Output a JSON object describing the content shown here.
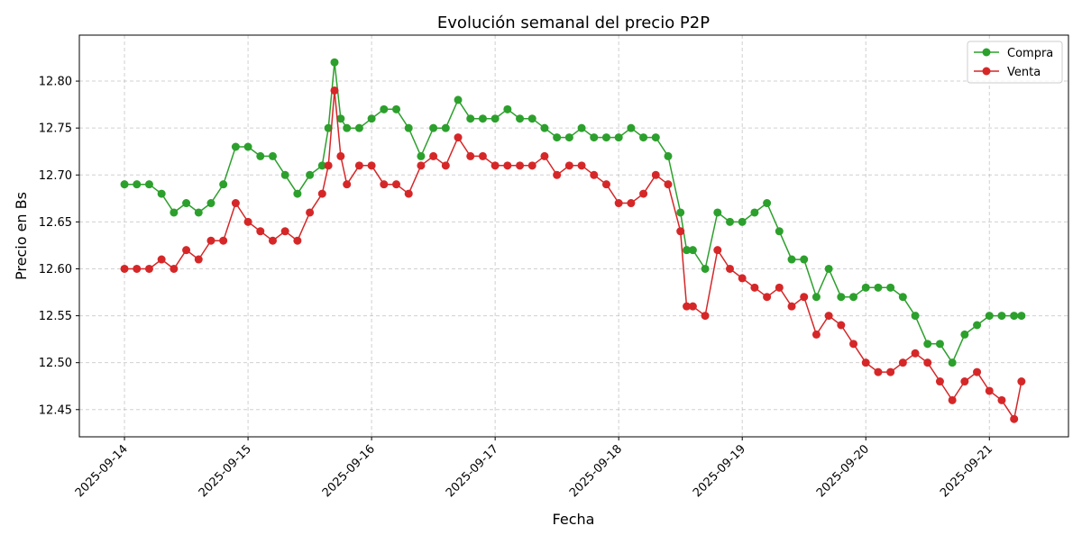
{
  "chart_data": {
    "type": "line",
    "title": "Evolución semanal del precio P2P",
    "xlabel": "Fecha",
    "ylabel": "Precio en Bs",
    "xlim": [
      "2025-09-13T15:14",
      "2025-09-21T15:22"
    ],
    "ylim": [
      12.421,
      12.849
    ],
    "x_ticks": [
      "2025-09-14",
      "2025-09-15",
      "2025-09-16",
      "2025-09-17",
      "2025-09-18",
      "2025-09-19",
      "2025-09-20",
      "2025-09-21"
    ],
    "y_ticks": [
      "12.45",
      "12.50",
      "12.55",
      "12.60",
      "12.65",
      "12.70",
      "12.75",
      "12.80"
    ],
    "grid": true,
    "legend_position": "top-right",
    "x": [
      "2025-09-14T00:00",
      "2025-09-14T02:24",
      "2025-09-14T04:48",
      "2025-09-14T07:12",
      "2025-09-14T09:36",
      "2025-09-14T12:00",
      "2025-09-14T14:24",
      "2025-09-14T16:48",
      "2025-09-14T19:12",
      "2025-09-14T21:36",
      "2025-09-15T00:00",
      "2025-09-15T02:24",
      "2025-09-15T04:48",
      "2025-09-15T07:12",
      "2025-09-15T09:36",
      "2025-09-15T12:00",
      "2025-09-15T14:24",
      "2025-09-15T15:36",
      "2025-09-15T16:48",
      "2025-09-15T18:00",
      "2025-09-15T19:12",
      "2025-09-15T21:36",
      "2025-09-16T00:00",
      "2025-09-16T02:24",
      "2025-09-16T04:48",
      "2025-09-16T07:12",
      "2025-09-16T09:36",
      "2025-09-16T12:00",
      "2025-09-16T14:24",
      "2025-09-16T16:48",
      "2025-09-16T19:12",
      "2025-09-16T21:36",
      "2025-09-17T00:00",
      "2025-09-17T02:24",
      "2025-09-17T04:48",
      "2025-09-17T07:12",
      "2025-09-17T09:36",
      "2025-09-17T12:00",
      "2025-09-17T14:24",
      "2025-09-17T16:48",
      "2025-09-17T19:12",
      "2025-09-17T21:36",
      "2025-09-18T00:00",
      "2025-09-18T02:24",
      "2025-09-18T04:48",
      "2025-09-18T07:12",
      "2025-09-18T09:36",
      "2025-09-18T12:00",
      "2025-09-18T13:12",
      "2025-09-18T14:24",
      "2025-09-18T16:48",
      "2025-09-18T19:12",
      "2025-09-18T21:36",
      "2025-09-19T00:00",
      "2025-09-19T02:24",
      "2025-09-19T04:48",
      "2025-09-19T07:12",
      "2025-09-19T09:36",
      "2025-09-19T12:00",
      "2025-09-19T14:24",
      "2025-09-19T16:48",
      "2025-09-19T19:12",
      "2025-09-19T21:36",
      "2025-09-20T00:00",
      "2025-09-20T02:24",
      "2025-09-20T04:48",
      "2025-09-20T07:12",
      "2025-09-20T09:36",
      "2025-09-20T12:00",
      "2025-09-20T14:24",
      "2025-09-20T16:48",
      "2025-09-20T19:12",
      "2025-09-20T21:36",
      "2025-09-21T00:00",
      "2025-09-21T02:24",
      "2025-09-21T04:48",
      "2025-09-21T06:14"
    ],
    "series": [
      {
        "name": "Compra",
        "color": "#2ca02c",
        "marker": "circle",
        "values": [
          12.69,
          12.69,
          12.69,
          12.68,
          12.66,
          12.67,
          12.66,
          12.67,
          12.69,
          12.73,
          12.73,
          12.72,
          12.72,
          12.7,
          12.68,
          12.7,
          12.71,
          12.75,
          12.82,
          12.76,
          12.75,
          12.75,
          12.76,
          12.77,
          12.77,
          12.75,
          12.72,
          12.75,
          12.75,
          12.78,
          12.76,
          12.76,
          12.76,
          12.77,
          12.76,
          12.76,
          12.75,
          12.74,
          12.74,
          12.75,
          12.74,
          12.74,
          12.74,
          12.75,
          12.74,
          12.74,
          12.72,
          12.66,
          12.62,
          12.62,
          12.6,
          12.66,
          12.65,
          12.65,
          12.66,
          12.67,
          12.64,
          12.61,
          12.61,
          12.57,
          12.6,
          12.57,
          12.57,
          12.58,
          12.58,
          12.58,
          12.57,
          12.55,
          12.52,
          12.52,
          12.5,
          12.53,
          12.54,
          12.55,
          12.55,
          12.55,
          12.55
        ]
      },
      {
        "name": "Venta",
        "color": "#d62728",
        "marker": "circle",
        "values": [
          12.6,
          12.6,
          12.6,
          12.61,
          12.6,
          12.62,
          12.61,
          12.63,
          12.63,
          12.67,
          12.65,
          12.64,
          12.63,
          12.64,
          12.63,
          12.66,
          12.68,
          12.71,
          12.79,
          12.72,
          12.69,
          12.71,
          12.71,
          12.69,
          12.69,
          12.68,
          12.71,
          12.72,
          12.71,
          12.74,
          12.72,
          12.72,
          12.71,
          12.71,
          12.71,
          12.71,
          12.72,
          12.7,
          12.71,
          12.71,
          12.7,
          12.69,
          12.67,
          12.67,
          12.68,
          12.7,
          12.69,
          12.64,
          12.56,
          12.56,
          12.55,
          12.62,
          12.6,
          12.59,
          12.58,
          12.57,
          12.58,
          12.56,
          12.57,
          12.53,
          12.55,
          12.54,
          12.52,
          12.5,
          12.49,
          12.49,
          12.5,
          12.51,
          12.5,
          12.48,
          12.46,
          12.48,
          12.49,
          12.47,
          12.46,
          12.44,
          12.48
        ]
      }
    ]
  }
}
